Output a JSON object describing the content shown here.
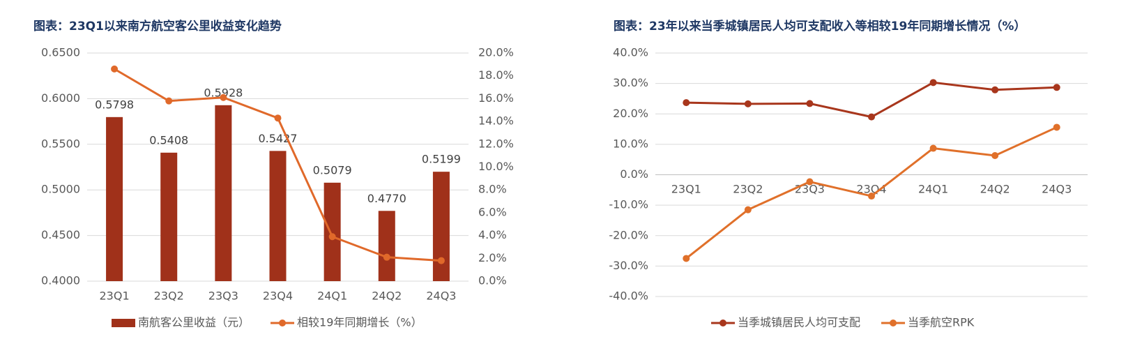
{
  "chart_data": [
    {
      "type": "bar",
      "title": "图表：23Q1以来南方航空客公里收益变化趋势",
      "categories": [
        "23Q1",
        "23Q2",
        "23Q3",
        "23Q4",
        "24Q1",
        "24Q2",
        "24Q3"
      ],
      "series": [
        {
          "name": "南航客公里收益（元）",
          "type": "bar",
          "color": "#a0311a",
          "axis": "y",
          "values": [
            0.5798,
            0.5408,
            0.5928,
            0.5427,
            0.5079,
            0.477,
            0.5199
          ],
          "value_labels": [
            "0.5798",
            "0.5408",
            "0.5928",
            "0.5427",
            "0.5079",
            "0.4770",
            "0.5199"
          ]
        },
        {
          "name": "相较19年同期增长（%）",
          "type": "line",
          "color": "#e0692a",
          "axis": "y2",
          "values": [
            18.6,
            15.8,
            16.1,
            14.3,
            3.9,
            2.1,
            1.8
          ]
        }
      ],
      "ylim": [
        0.4,
        0.65
      ],
      "yticks": [
        {
          "value": 0.4,
          "label": "0.4000"
        },
        {
          "value": 0.45,
          "label": "0.4500"
        },
        {
          "value": 0.5,
          "label": "0.5000"
        },
        {
          "value": 0.55,
          "label": "0.5500"
        },
        {
          "value": 0.6,
          "label": "0.6000"
        },
        {
          "value": 0.65,
          "label": "0.6500"
        }
      ],
      "y2lim": [
        0,
        20
      ],
      "y2ticks": [
        {
          "value": 0,
          "label": "0.0%"
        },
        {
          "value": 2,
          "label": "2.0%"
        },
        {
          "value": 4,
          "label": "4.0%"
        },
        {
          "value": 6,
          "label": "6.0%"
        },
        {
          "value": 8,
          "label": "8.0%"
        },
        {
          "value": 10,
          "label": "10.0%"
        },
        {
          "value": 12,
          "label": "12.0%"
        },
        {
          "value": 14,
          "label": "14.0%"
        },
        {
          "value": 16,
          "label": "16.0%"
        },
        {
          "value": 18,
          "label": "18.0%"
        },
        {
          "value": 20,
          "label": "20.0%"
        }
      ],
      "grid": true
    },
    {
      "type": "line",
      "title": "图表：23年以来当季城镇居民人均可支配收入等相较19年同期增长情况（%）",
      "categories": [
        "23Q1",
        "23Q2",
        "23Q3",
        "23Q4",
        "24Q1",
        "24Q2",
        "24Q3"
      ],
      "series": [
        {
          "name": "当季城镇居民人均可支配",
          "color": "#a8361c",
          "values": [
            23.7,
            23.3,
            23.4,
            19.0,
            30.3,
            27.9,
            28.7
          ]
        },
        {
          "name": "当季航空RPK",
          "color": "#e0702a",
          "values": [
            -27.5,
            -11.5,
            -2.3,
            -7.0,
            8.7,
            6.3,
            15.6
          ]
        }
      ],
      "ylim": [
        -40,
        40
      ],
      "yticks": [
        {
          "value": -40,
          "label": "-40.0%"
        },
        {
          "value": -30,
          "label": "-30.0%"
        },
        {
          "value": -20,
          "label": "-20.0%"
        },
        {
          "value": -10,
          "label": "-10.0%"
        },
        {
          "value": 0,
          "label": "0.0%"
        },
        {
          "value": 10,
          "label": "10.0%"
        },
        {
          "value": 20,
          "label": "20.0%"
        },
        {
          "value": 30,
          "label": "30.0%"
        },
        {
          "value": 40,
          "label": "40.0%"
        }
      ],
      "grid": true
    }
  ]
}
